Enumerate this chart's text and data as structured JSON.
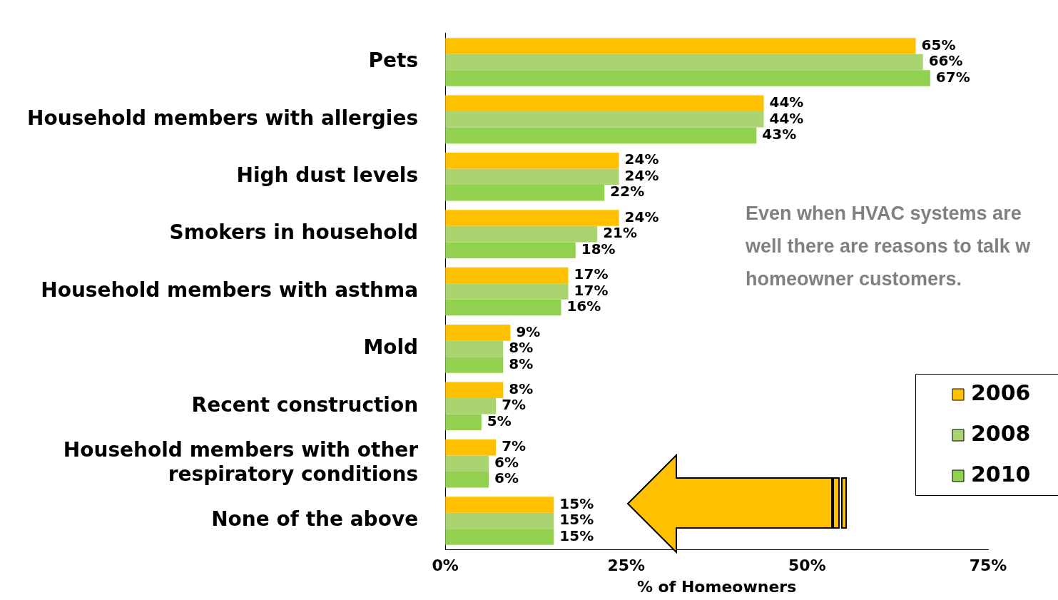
{
  "chart_data": {
    "type": "bar",
    "orientation": "horizontal",
    "xlabel": "% of Homeowners",
    "categories": [
      "Pets",
      "Household members with allergies",
      "High dust levels",
      "Smokers in household",
      "Household members with asthma",
      "Mold",
      "Recent construction",
      "Household members with other respiratory conditions",
      "None of the above"
    ],
    "series": [
      {
        "name": "2006",
        "color": "#ffc000",
        "values": [
          65,
          44,
          24,
          24,
          17,
          9,
          8,
          7,
          15
        ],
        "value_labels": [
          "65%",
          "44%",
          "24%",
          "24%",
          "17%",
          "9%",
          "8%",
          "7%",
          "15%"
        ]
      },
      {
        "name": "2008",
        "color": "#a9d46f",
        "values": [
          66,
          44,
          24,
          21,
          17,
          8,
          7,
          6,
          15
        ],
        "value_labels": [
          "66%",
          "44%",
          "24%",
          "21%",
          "17%",
          "8%",
          "7%",
          "6%",
          "15%"
        ]
      },
      {
        "name": "2010",
        "color": "#92d050",
        "values": [
          67,
          43,
          22,
          18,
          16,
          8,
          5,
          6,
          15
        ],
        "value_labels": [
          "67%",
          "43%",
          "22%",
          "18%",
          "16%",
          "8%",
          "5%",
          "6%",
          "15%"
        ]
      }
    ],
    "xlim": [
      0,
      75
    ],
    "xticks": [
      {
        "value": 0,
        "label": "0%"
      },
      {
        "value": 25,
        "label": "25%"
      },
      {
        "value": 50,
        "label": "50%"
      },
      {
        "value": 75,
        "label": "75%"
      }
    ],
    "grid": false,
    "legend": "bottom right",
    "annotations": [
      "Even when HVAC systems are well there are reasons to talk w homeowner customers."
    ]
  }
}
